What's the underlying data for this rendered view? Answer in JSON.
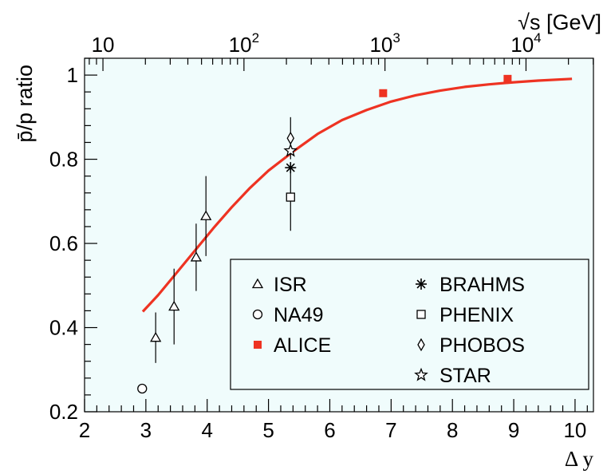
{
  "chart_data": {
    "type": "scatter",
    "xlabel": "Δ y",
    "xlabel_top": "√s [GeV]",
    "ylabel": "p̄/p ratio",
    "xlim": [
      2,
      10.3
    ],
    "ylim": [
      0.2,
      1.04
    ],
    "background_color": "#f0fcfc",
    "accent_color": "#ee3322",
    "x_ticks": [
      2,
      3,
      4,
      5,
      6,
      7,
      8,
      9,
      10
    ],
    "y_ticks": [
      0.2,
      0.4,
      0.6,
      0.8,
      1
    ],
    "x_tick_labels": [
      "2",
      "3",
      "4",
      "5",
      "6",
      "7",
      "8",
      "9",
      "10"
    ],
    "y_tick_labels": [
      "0.2",
      "0.4",
      "0.6",
      "0.8",
      "1"
    ],
    "top_axis": {
      "label": "√s [GeV]",
      "ticks": [
        {
          "base": "10",
          "exp": "",
          "dy": 2.3
        },
        {
          "base": "10",
          "exp": "2",
          "dy": 4.6
        },
        {
          "base": "10",
          "exp": "3",
          "dy": 6.9
        },
        {
          "base": "10",
          "exp": "4",
          "dy": 9.2
        }
      ]
    },
    "series": [
      {
        "name": "ISR",
        "marker": "triangle",
        "color": "#000000",
        "points": [
          {
            "x": 3.16,
            "y": 0.376,
            "err": 0.06
          },
          {
            "x": 3.46,
            "y": 0.45,
            "err": 0.09
          },
          {
            "x": 3.82,
            "y": 0.567,
            "err": 0.08
          },
          {
            "x": 3.98,
            "y": 0.665,
            "err": 0.095
          }
        ]
      },
      {
        "name": "NA49",
        "marker": "circle",
        "color": "#000000",
        "points": [
          {
            "x": 2.94,
            "y": 0.255,
            "err": 0
          }
        ]
      },
      {
        "name": "ALICE",
        "marker": "filled-square",
        "color": "#ee3322",
        "points": [
          {
            "x": 6.87,
            "y": 0.957,
            "err": 0
          },
          {
            "x": 8.9,
            "y": 0.991,
            "err": 0
          }
        ]
      },
      {
        "name": "BRAHMS",
        "marker": "asterisk",
        "color": "#000000",
        "points": [
          {
            "x": 5.36,
            "y": 0.78,
            "err": 0
          }
        ]
      },
      {
        "name": "PHENIX",
        "marker": "open-square",
        "color": "#000000",
        "points": [
          {
            "x": 5.36,
            "y": 0.71,
            "err": 0.08
          }
        ]
      },
      {
        "name": "PHOBOS",
        "marker": "diamond",
        "color": "#000000",
        "points": [
          {
            "x": 5.36,
            "y": 0.85,
            "err": 0.05
          }
        ]
      },
      {
        "name": "STAR",
        "marker": "star",
        "color": "#000000",
        "points": [
          {
            "x": 5.36,
            "y": 0.82,
            "err": 0
          }
        ]
      }
    ],
    "fit_curve": {
      "color": "#ee3322",
      "x": [
        2.95,
        3.2,
        3.5,
        3.8,
        4.1,
        4.4,
        4.7,
        5.0,
        5.4,
        5.8,
        6.2,
        6.6,
        7.0,
        7.4,
        7.8,
        8.2,
        8.6,
        9.0,
        9.4,
        9.95
      ],
      "y": [
        0.438,
        0.477,
        0.53,
        0.583,
        0.636,
        0.686,
        0.732,
        0.773,
        0.818,
        0.86,
        0.893,
        0.917,
        0.937,
        0.952,
        0.963,
        0.972,
        0.978,
        0.983,
        0.987,
        0.991
      ]
    },
    "legend": {
      "position": "bottom-right",
      "entries": [
        {
          "label": "ISR",
          "marker": "triangle"
        },
        {
          "label": "NA49",
          "marker": "circle"
        },
        {
          "label": "ALICE",
          "marker": "filled-square"
        },
        {
          "label": "BRAHMS",
          "marker": "asterisk"
        },
        {
          "label": "PHENIX",
          "marker": "open-square"
        },
        {
          "label": "PHOBOS",
          "marker": "diamond"
        },
        {
          "label": "STAR",
          "marker": "star"
        }
      ]
    }
  }
}
